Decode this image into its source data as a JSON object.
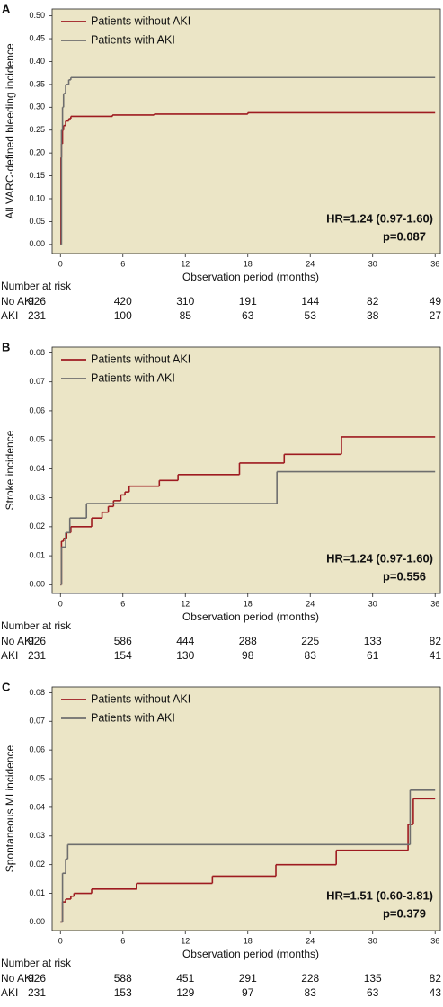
{
  "chart_data": [
    {
      "type": "line",
      "step": "post",
      "panel_label": "A",
      "ylabel": "All VARC-defined bleeding incidence",
      "xlabel": "Observation period (months)",
      "xlim": [
        -0.8,
        36.5
      ],
      "ylim": [
        -0.02,
        0.515
      ],
      "xticks": [
        0,
        6,
        12,
        18,
        24,
        30,
        36
      ],
      "yticks": [
        {
          "value": 0,
          "label": "0.00"
        },
        {
          "value": 0.05,
          "label": "0.05"
        },
        {
          "value": 0.1,
          "label": "0.10"
        },
        {
          "value": 0.15,
          "label": "0.15"
        },
        {
          "value": 0.2,
          "label": "0.20"
        },
        {
          "value": 0.25,
          "label": "0.25"
        },
        {
          "value": 0.3,
          "label": "0.30"
        },
        {
          "value": 0.35,
          "label": "0.35"
        },
        {
          "value": 0.4,
          "label": "0.40"
        },
        {
          "value": 0.45,
          "label": "0.45"
        },
        {
          "value": 0.5,
          "label": "0.50"
        }
      ],
      "legend": "upper left",
      "background": "#ebe5c6",
      "series": [
        {
          "name": "Patients without AKI",
          "color": "#9e1b20",
          "x": [
            0,
            0.05,
            0.1,
            0.2,
            0.3,
            0.5,
            0.8,
            1,
            5,
            9,
            18,
            36
          ],
          "values": [
            0,
            0.19,
            0.22,
            0.25,
            0.26,
            0.27,
            0.275,
            0.28,
            0.283,
            0.285,
            0.288,
            0.288
          ]
        },
        {
          "name": "Patients with AKI",
          "color": "#6e6e6e",
          "x": [
            0,
            0.1,
            0.2,
            0.3,
            0.5,
            0.8,
            1,
            36
          ],
          "values": [
            0,
            0.25,
            0.3,
            0.33,
            0.35,
            0.36,
            0.365,
            0.365
          ]
        }
      ],
      "annotations": [
        "HR=1.24 (0.97-1.60)",
        "p=0.087"
      ],
      "risk_table": {
        "title": "Number at risk",
        "rows": [
          {
            "label": "No AKI",
            "values": [
              926,
              420,
              310,
              191,
              144,
              82,
              49
            ]
          },
          {
            "label": "AKI",
            "values": [
              231,
              100,
              85,
              63,
              53,
              38,
              27
            ]
          }
        ]
      }
    },
    {
      "type": "line",
      "step": "post",
      "panel_label": "B",
      "ylabel": "Stroke incidence",
      "xlabel": "Observation period (months)",
      "xlim": [
        -0.8,
        36.5
      ],
      "ylim": [
        -0.003,
        0.082
      ],
      "xticks": [
        0,
        6,
        12,
        18,
        24,
        30,
        36
      ],
      "yticks": [
        {
          "value": 0,
          "label": "0.00"
        },
        {
          "value": 0.01,
          "label": "0.01"
        },
        {
          "value": 0.02,
          "label": "0.02"
        },
        {
          "value": 0.03,
          "label": "0.03"
        },
        {
          "value": 0.04,
          "label": "0.04"
        },
        {
          "value": 0.05,
          "label": "0.05"
        },
        {
          "value": 0.06,
          "label": "0.06"
        },
        {
          "value": 0.07,
          "label": "0.07"
        },
        {
          "value": 0.08,
          "label": "0.08"
        }
      ],
      "legend": "upper left",
      "background": "#ebe5c6",
      "series": [
        {
          "name": "Patients without AKI",
          "color": "#9e1b20",
          "x": [
            0,
            0.1,
            0.3,
            0.6,
            1,
            3,
            4,
            4.6,
            5.1,
            5.8,
            6.2,
            6.6,
            9.5,
            11.3,
            17.2,
            21.5,
            27,
            36
          ],
          "values": [
            0,
            0.015,
            0.016,
            0.018,
            0.02,
            0.023,
            0.025,
            0.027,
            0.029,
            0.031,
            0.032,
            0.034,
            0.036,
            0.038,
            0.042,
            0.045,
            0.051,
            0.051
          ]
        },
        {
          "name": "Patients with AKI",
          "color": "#6e6e6e",
          "x": [
            0,
            0.1,
            0.5,
            0.9,
            2.5,
            20.8,
            36
          ],
          "values": [
            0,
            0.013,
            0.018,
            0.023,
            0.028,
            0.039,
            0.039
          ]
        }
      ],
      "annotations": [
        "HR=1.24 (0.97-1.60)",
        "p=0.556"
      ],
      "risk_table": {
        "title": "Number at risk",
        "rows": [
          {
            "label": "No AKI",
            "values": [
              926,
              586,
              444,
              288,
              225,
              133,
              82
            ]
          },
          {
            "label": "AKI",
            "values": [
              231,
              154,
              130,
              98,
              83,
              61,
              41
            ]
          }
        ]
      }
    },
    {
      "type": "line",
      "step": "post",
      "panel_label": "C",
      "ylabel": "Spontaneous MI incidence",
      "xlabel": "Observation period (months)",
      "xlim": [
        -0.8,
        36.5
      ],
      "ylim": [
        -0.003,
        0.082
      ],
      "xticks": [
        0,
        6,
        12,
        18,
        24,
        30,
        36
      ],
      "yticks": [
        {
          "value": 0,
          "label": "0.00"
        },
        {
          "value": 0.01,
          "label": "0.01"
        },
        {
          "value": 0.02,
          "label": "0.02"
        },
        {
          "value": 0.03,
          "label": "0.03"
        },
        {
          "value": 0.04,
          "label": "0.04"
        },
        {
          "value": 0.05,
          "label": "0.05"
        },
        {
          "value": 0.06,
          "label": "0.06"
        },
        {
          "value": 0.07,
          "label": "0.07"
        },
        {
          "value": 0.08,
          "label": "0.08"
        }
      ],
      "legend": "upper left",
      "background": "#ebe5c6",
      "series": [
        {
          "name": "Patients without AKI",
          "color": "#9e1b20",
          "x": [
            0,
            0.2,
            0.5,
            1,
            1.3,
            3,
            7.3,
            14.6,
            20.7,
            26.5,
            33.4,
            33.9,
            36
          ],
          "values": [
            0,
            0.007,
            0.008,
            0.009,
            0.01,
            0.0115,
            0.0135,
            0.016,
            0.02,
            0.025,
            0.034,
            0.043,
            0.043
          ]
        },
        {
          "name": "Patients with AKI",
          "color": "#6e6e6e",
          "x": [
            0,
            0.2,
            0.5,
            0.7,
            33.6,
            36
          ],
          "values": [
            0,
            0.017,
            0.022,
            0.027,
            0.046,
            0.046
          ]
        }
      ],
      "annotations": [
        "HR=1.51 (0.60-3.81)",
        "p=0.379"
      ],
      "risk_table": {
        "title": "Number at risk",
        "rows": [
          {
            "label": "No AKI",
            "values": [
              926,
              588,
              451,
              291,
              228,
              135,
              82
            ]
          },
          {
            "label": "AKI",
            "values": [
              231,
              153,
              129,
              97,
              83,
              63,
              43
            ]
          }
        ]
      }
    }
  ]
}
